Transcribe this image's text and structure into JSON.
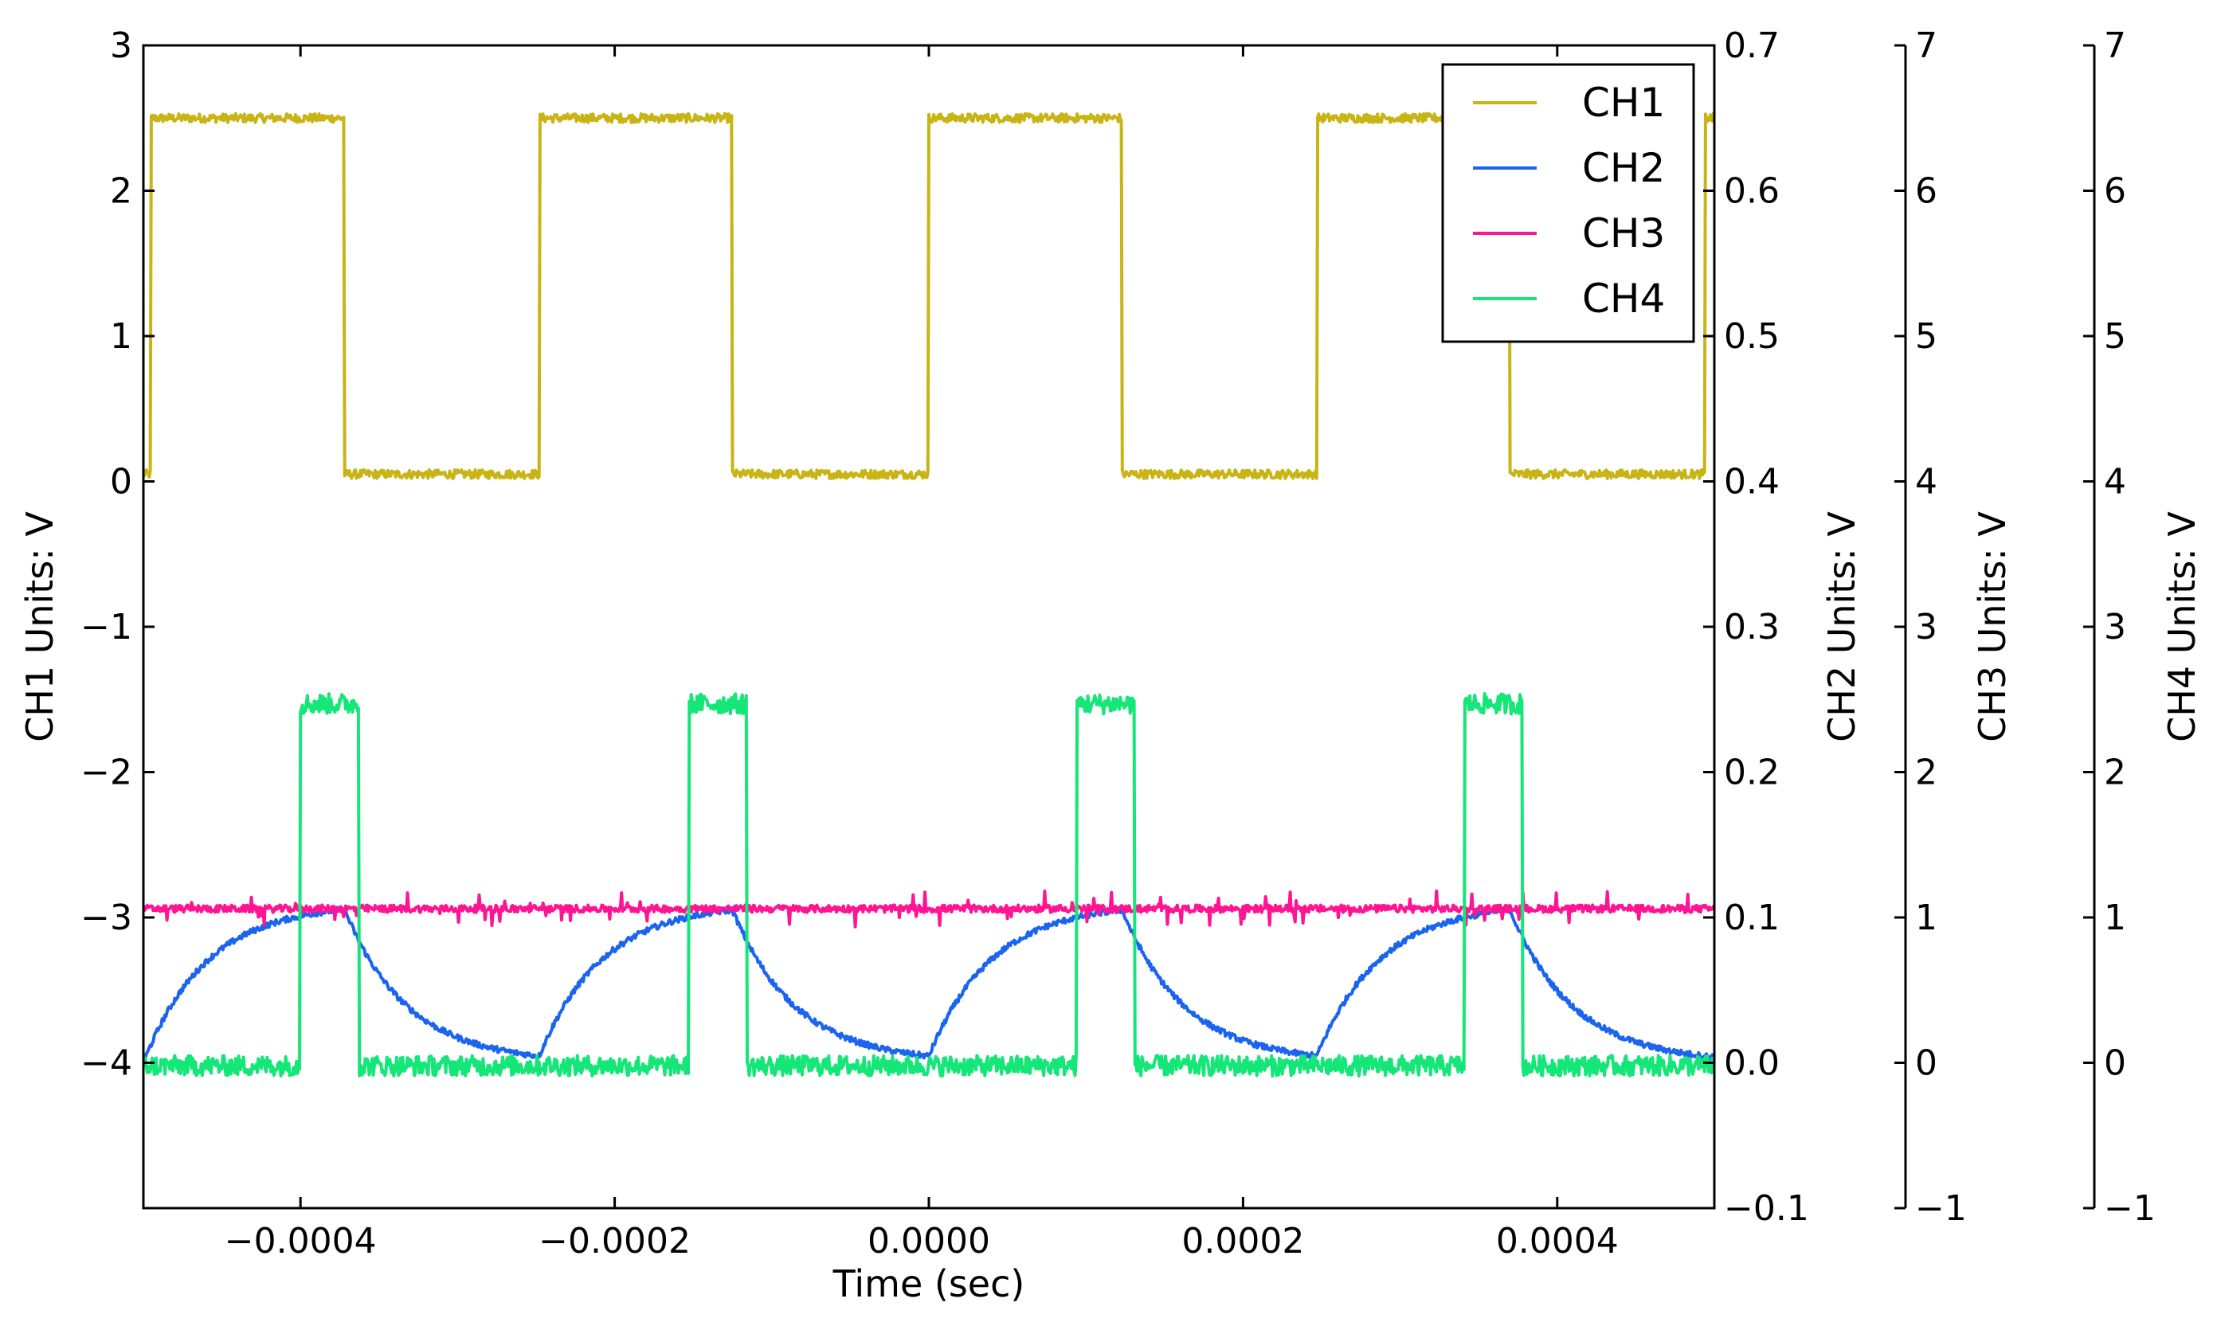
{
  "chart_data": {
    "type": "line",
    "xlabel": "Time (sec)",
    "xlim": [
      -0.0005,
      0.0005
    ],
    "xticks": [
      {
        "value": -0.0004,
        "label": "−0.0004"
      },
      {
        "value": -0.0002,
        "label": "−0.0002"
      },
      {
        "value": 0.0,
        "label": "0.0000"
      },
      {
        "value": 0.0002,
        "label": "0.0002"
      },
      {
        "value": 0.0004,
        "label": "0.0004"
      }
    ],
    "grid": false,
    "legend_position": "top-right",
    "period": 0.000247,
    "axes": [
      {
        "label": "CH1 Units: V",
        "ylim": [
          -5,
          3
        ],
        "ticks": [
          {
            "value": 3,
            "label": "3"
          },
          {
            "value": 2,
            "label": "2"
          },
          {
            "value": 1,
            "label": "1"
          },
          {
            "value": 0,
            "label": "0"
          },
          {
            "value": -1,
            "label": "−1"
          },
          {
            "value": -2,
            "label": "−2"
          },
          {
            "value": -3,
            "label": "−3"
          },
          {
            "value": -4,
            "label": "−4"
          }
        ]
      },
      {
        "label": "CH2 Units: V",
        "ylim": [
          -0.1,
          0.7
        ],
        "ticks": [
          {
            "value": 0.7,
            "label": "0.7"
          },
          {
            "value": 0.6,
            "label": "0.6"
          },
          {
            "value": 0.5,
            "label": "0.5"
          },
          {
            "value": 0.4,
            "label": "0.4"
          },
          {
            "value": 0.3,
            "label": "0.3"
          },
          {
            "value": 0.2,
            "label": "0.2"
          },
          {
            "value": 0.1,
            "label": "0.1"
          },
          {
            "value": 0.0,
            "label": "0.0"
          },
          {
            "value": -0.1,
            "label": "−0.1"
          }
        ]
      },
      {
        "label": "CH3 Units: V",
        "ylim": [
          -1,
          7
        ],
        "ticks": [
          {
            "value": 7,
            "label": "7"
          },
          {
            "value": 6,
            "label": "6"
          },
          {
            "value": 5,
            "label": "5"
          },
          {
            "value": 4,
            "label": "4"
          },
          {
            "value": 3,
            "label": "3"
          },
          {
            "value": 2,
            "label": "2"
          },
          {
            "value": 1,
            "label": "1"
          },
          {
            "value": 0,
            "label": "0"
          },
          {
            "value": -1,
            "label": "−1"
          }
        ]
      },
      {
        "label": "CH4 Units: V",
        "ylim": [
          -1,
          7
        ],
        "ticks": [
          {
            "value": 7,
            "label": "7"
          },
          {
            "value": 6,
            "label": "6"
          },
          {
            "value": 5,
            "label": "5"
          },
          {
            "value": 4,
            "label": "4"
          },
          {
            "value": 3,
            "label": "3"
          },
          {
            "value": 2,
            "label": "2"
          },
          {
            "value": 1,
            "label": "1"
          },
          {
            "value": 0,
            "label": "0"
          },
          {
            "value": -1,
            "label": "−1"
          }
        ]
      }
    ],
    "series": [
      {
        "name": "CH1",
        "color": "#c8b414",
        "axis": 0,
        "shape": "square",
        "low": 0.05,
        "high": 2.5,
        "rising_edges": [
          -0.000495,
          -0.000248,
          0.0,
          0.000247,
          0.000494
        ],
        "falling_edges": [
          -0.000372,
          -0.000125,
          0.000123,
          0.00037
        ]
      },
      {
        "name": "CH2",
        "color": "#1a64f0",
        "axis": 1,
        "shape": "rc_charge",
        "min": 0.0,
        "max": 0.11,
        "rise_starts": [
          -0.000495,
          -0.000248,
          0.0,
          0.000247
        ],
        "peaks": [
          -0.000372,
          -0.000125,
          0.000123,
          0.00037
        ]
      },
      {
        "name": "CH3",
        "color": "#ff1493",
        "axis": 2,
        "shape": "constant",
        "value": 1.06
      },
      {
        "name": "CH4",
        "color": "#14e678",
        "axis": 3,
        "shape": "pulse",
        "low": -0.02,
        "high": 2.47,
        "pulse_starts": [
          -0.0004,
          -0.000153,
          9.4e-05,
          0.000341
        ],
        "pulse_ends": [
          -0.000363,
          -0.000116,
          0.000131,
          0.000378
        ]
      }
    ]
  }
}
